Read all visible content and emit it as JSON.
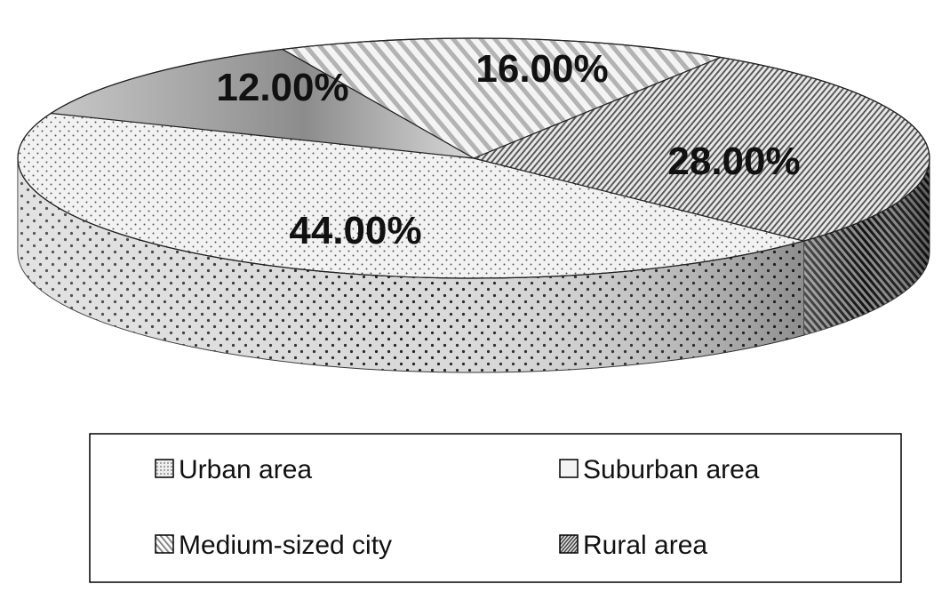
{
  "chart_data": {
    "type": "pie",
    "title": "",
    "categories": [
      "Urban area",
      "Suburban area",
      "Medium-sized city",
      "Rural area"
    ],
    "values": [
      44,
      12,
      16,
      28
    ],
    "labels": [
      "44.00%",
      "12.00%",
      "16.00%",
      "28.00%"
    ],
    "legend_position": "bottom",
    "style": "3d-pie-grayscale-patterns"
  }
}
